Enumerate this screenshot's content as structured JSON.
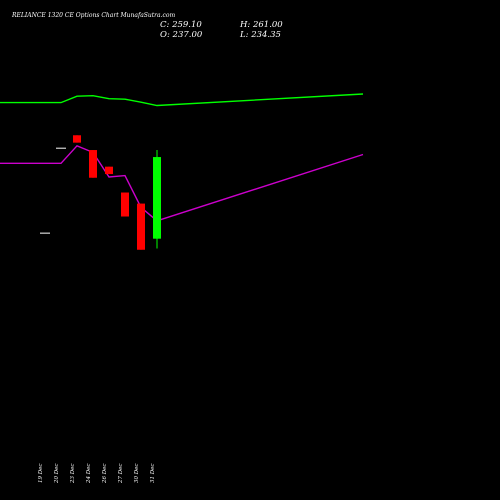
{
  "header": {
    "title": "RELIANCE 1320  CE Options  Chart MunafaSutra.com",
    "close_label": "C: 259.10",
    "open_label": "O: 237.00",
    "high_label": "H: 261.00",
    "low_label": "L: 234.35"
  },
  "chart_data": {
    "type": "candlestick",
    "title": "RELIANCE 1320  CE Options  Chart MunafaSutra.com",
    "categories": [
      "19 Dec",
      "20 Dec",
      "23 Dec",
      "24 Dec",
      "26 Dec",
      "27 Dec",
      "30 Dec",
      "31 Dec"
    ],
    "price_range": [
      150,
      300
    ],
    "candles": [
      {
        "date": "19 Dec",
        "open": 238.5,
        "high": 238.5,
        "low": 238.5,
        "close": 238.5
      },
      {
        "date": "20 Dec",
        "open": 261.5,
        "high": 261.5,
        "low": 261.5,
        "close": 261.5
      },
      {
        "date": "23 Dec",
        "open": 265.0,
        "high": 265.0,
        "low": 263.0,
        "close": 263.0
      },
      {
        "date": "24 Dec",
        "open": 261.0,
        "high": 261.0,
        "low": 253.5,
        "close": 253.5
      },
      {
        "date": "26 Dec",
        "open": 256.5,
        "high": 256.5,
        "low": 254.5,
        "close": 254.5
      },
      {
        "date": "27 Dec",
        "open": 249.5,
        "high": 249.5,
        "low": 243.0,
        "close": 243.0
      },
      {
        "date": "30 Dec",
        "open": 246.5,
        "high": 246.5,
        "low": 234.0,
        "close": 234.0
      },
      {
        "date": "31 Dec",
        "open": 237.0,
        "high": 261.0,
        "low": 234.35,
        "close": 259.1
      }
    ],
    "series": [
      {
        "color": "#00ff00",
        "values": [
          95.6,
          95.6,
          100.0,
          100.3,
          98.3,
          97.9,
          95.9,
          93.6
        ],
        "extra_point": 101.5
      },
      {
        "color": "#cc00cc",
        "values": [
          54.0,
          54.0,
          66.0,
          61.5,
          44.6,
          45.6,
          23.8,
          14.6
        ],
        "extra_point": 60.0
      }
    ],
    "line_range": [
      -100,
      120
    ],
    "colors": {
      "up": "#00ff00",
      "down": "#ff0000",
      "background": "#000000",
      "text": "#ffffff"
    },
    "grid": false,
    "legend": "none"
  }
}
